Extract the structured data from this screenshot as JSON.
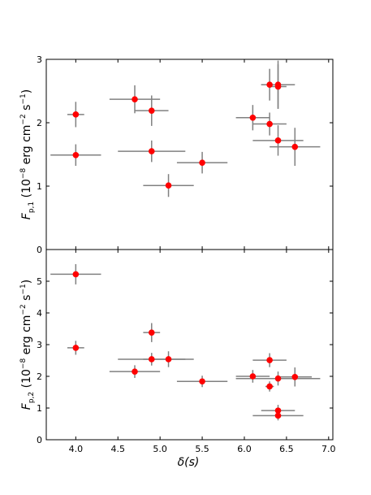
{
  "chart_data": [
    {
      "type": "scatter",
      "panel": "top",
      "title": "",
      "xlabel": "",
      "ylabel": {
        "main": "F",
        "sub": "p,1",
        "units_pre": " (10",
        "exp1": "−8",
        "units_mid": " erg cm",
        "exp2": "−2",
        "units_mid2": " s",
        "exp3": "−1",
        "units_post": ")"
      },
      "xlim": [
        3.65,
        7.05
      ],
      "ylim": [
        0,
        3
      ],
      "xticks": [
        4.0,
        4.5,
        5.0,
        5.5,
        6.0,
        6.5,
        7.0
      ],
      "xtick_labels_shown": false,
      "yticks": [
        0,
        1,
        2,
        3
      ],
      "ytick_labels": [
        "0",
        "1",
        "2",
        "3"
      ],
      "grid": false,
      "marker_color": "#ff0000",
      "errorbar_color": "#808080",
      "points": [
        {
          "x": 4.0,
          "y": 2.13,
          "xerr": 0.1,
          "yerr": 0.2
        },
        {
          "x": 4.0,
          "y": 1.49,
          "xerr": 0.3,
          "yerr": 0.17
        },
        {
          "x": 4.7,
          "y": 2.37,
          "xerr": 0.3,
          "yerr": 0.22
        },
        {
          "x": 4.9,
          "y": 2.19,
          "xerr": 0.2,
          "yerr": 0.24
        },
        {
          "x": 4.9,
          "y": 1.55,
          "xerr": 0.4,
          "yerr": 0.17
        },
        {
          "x": 5.1,
          "y": 1.01,
          "xerr": 0.3,
          "yerr": 0.18
        },
        {
          "x": 5.5,
          "y": 1.37,
          "xerr": 0.3,
          "yerr": 0.17
        },
        {
          "x": 6.1,
          "y": 2.08,
          "xerr": 0.2,
          "yerr": 0.2
        },
        {
          "x": 6.3,
          "y": 2.6,
          "xerr": 0.1,
          "yerr": 0.25
        },
        {
          "x": 6.3,
          "y": 1.98,
          "xerr": 0.2,
          "yerr": 0.18
        },
        {
          "x": 6.4,
          "y": 2.6,
          "xerr": 0.2,
          "yerr": 0.38
        },
        {
          "x": 6.4,
          "y": 2.57,
          "xerr": 0.1,
          "yerr": 0.35
        },
        {
          "x": 6.4,
          "y": 1.72,
          "xerr": 0.3,
          "yerr": 0.24
        },
        {
          "x": 6.6,
          "y": 1.62,
          "xerr": 0.3,
          "yerr": 0.3
        }
      ]
    },
    {
      "type": "scatter",
      "panel": "bottom",
      "title": "",
      "xlabel": {
        "text": "δ(s)"
      },
      "ylabel": {
        "main": "F",
        "sub": "p,2",
        "units_pre": " (10",
        "exp1": "−8",
        "units_mid": " erg cm",
        "exp2": "−2",
        "units_mid2": " s",
        "exp3": "−1",
        "units_post": ")"
      },
      "xlim": [
        3.65,
        7.05
      ],
      "ylim": [
        0,
        6
      ],
      "xticks": [
        4.0,
        4.5,
        5.0,
        5.5,
        6.0,
        6.5,
        7.0
      ],
      "xtick_labels": [
        "4.0",
        "4.5",
        "5.0",
        "5.5",
        "6.0",
        "6.5",
        "7.0"
      ],
      "yticks": [
        0,
        1,
        2,
        3,
        4,
        5
      ],
      "ytick_labels": [
        "0",
        "1",
        "2",
        "3",
        "4",
        "5"
      ],
      "grid": false,
      "marker_color": "#ff0000",
      "errorbar_color": "#808080",
      "points": [
        {
          "x": 4.0,
          "y": 5.22,
          "xerr": 0.3,
          "yerr": 0.32
        },
        {
          "x": 4.0,
          "y": 2.9,
          "xerr": 0.1,
          "yerr": 0.22
        },
        {
          "x": 4.7,
          "y": 2.15,
          "xerr": 0.3,
          "yerr": 0.2
        },
        {
          "x": 4.9,
          "y": 3.38,
          "xerr": 0.1,
          "yerr": 0.3
        },
        {
          "x": 4.9,
          "y": 2.54,
          "xerr": 0.4,
          "yerr": 0.2
        },
        {
          "x": 5.1,
          "y": 2.54,
          "xerr": 0.3,
          "yerr": 0.25
        },
        {
          "x": 5.5,
          "y": 1.84,
          "xerr": 0.3,
          "yerr": 0.18
        },
        {
          "x": 6.1,
          "y": 2.0,
          "xerr": 0.2,
          "yerr": 0.2
        },
        {
          "x": 6.3,
          "y": 2.51,
          "xerr": 0.2,
          "yerr": 0.22
        },
        {
          "x": 6.3,
          "y": 1.68,
          "xerr": 0.05,
          "yerr": 0.16
        },
        {
          "x": 6.4,
          "y": 1.93,
          "xerr": 0.5,
          "yerr": 0.22
        },
        {
          "x": 6.4,
          "y": 0.92,
          "xerr": 0.2,
          "yerr": 0.18
        },
        {
          "x": 6.4,
          "y": 0.76,
          "xerr": 0.3,
          "yerr": 0.15
        },
        {
          "x": 6.6,
          "y": 1.98,
          "xerr": 0.2,
          "yerr": 0.3
        }
      ]
    }
  ]
}
